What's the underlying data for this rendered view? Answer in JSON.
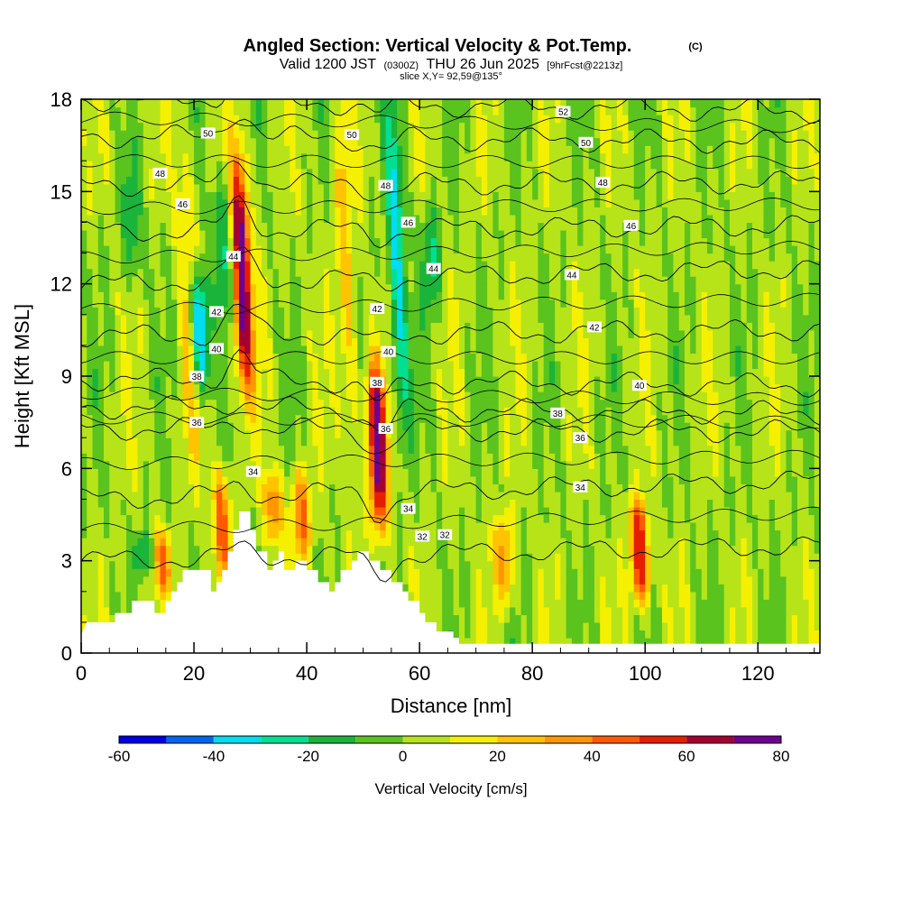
{
  "header": {
    "title": "Angled Section: Vertical Velocity & Pot.Temp.",
    "copyright": "(C)",
    "valid_prefix": "Valid 1200 JST",
    "valid_utc": "(0300Z)",
    "valid_date": "THU 26 Jun 2025",
    "forecast": "[9hrFcst@2213z]",
    "slice": "slice X,Y= 92,59@135°"
  },
  "colors": {
    "bins": [
      "#0000e6",
      "#0066f0",
      "#00dcf0",
      "#00e090",
      "#1bb43a",
      "#5ac31e",
      "#b6e419",
      "#f5f000",
      "#ffc300",
      "#ff9600",
      "#ff5a00",
      "#e61e00",
      "#a50032",
      "#6e0091"
    ],
    "terrain": "#ffffff",
    "contour": "#000000"
  },
  "chart_data": {
    "type": "heatmap",
    "xlabel": "Distance [nm]",
    "ylabel": "Height [Kft MSL]",
    "xlim": [
      0,
      131
    ],
    "ylim": [
      0,
      18
    ],
    "xticks": [
      0,
      20,
      40,
      60,
      80,
      100,
      120
    ],
    "yticks": [
      0,
      3,
      6,
      9,
      12,
      15,
      18
    ],
    "colorbar": {
      "label": "Vertical Velocity [cm/s]",
      "boundaries": [
        -60,
        -50,
        -40,
        -30,
        -20,
        -10,
        0,
        10,
        20,
        30,
        40,
        50,
        60,
        70,
        80
      ],
      "tick_labels": [
        "-60",
        "-40",
        "-20",
        "0",
        "20",
        "40",
        "60",
        "80"
      ],
      "tick_values": [
        -60,
        -40,
        -20,
        0,
        20,
        40,
        60,
        80
      ]
    },
    "field_features": {
      "updrafts": [
        {
          "x": 28.5,
          "y_bottom": 8.5,
          "y_top": 16.2,
          "max": 75
        },
        {
          "x": 52.5,
          "y_bottom": 4.0,
          "y_top": 9.5,
          "max": 75
        },
        {
          "x": 99,
          "y_bottom": 1.5,
          "y_top": 5.0,
          "max": 60
        },
        {
          "x": 25,
          "y_bottom": 2.5,
          "y_top": 6.0,
          "max": 40
        },
        {
          "x": 47,
          "y_bottom": 6.0,
          "y_top": 18,
          "max": 22
        },
        {
          "x": 19,
          "y_bottom": 6.0,
          "y_top": 17,
          "max": 20
        },
        {
          "x": 14.5,
          "y_bottom": 2.0,
          "y_top": 4.0,
          "max": 35
        },
        {
          "x": 39,
          "y_bottom": 3.0,
          "y_top": 6.0,
          "max": 40
        },
        {
          "x": 34,
          "y_bottom": 3.5,
          "y_top": 6.0,
          "max": 35
        },
        {
          "x": 75,
          "y_bottom": 1.5,
          "y_top": 4.5,
          "max": 35
        }
      ],
      "downdrafts": [
        {
          "x": 21,
          "y_bottom": 8.5,
          "y_top": 12.5,
          "min": -55
        },
        {
          "x": 25,
          "y_bottom": 11.0,
          "y_top": 15.5,
          "min": -25
        },
        {
          "x": 56,
          "y_bottom": 7.0,
          "y_top": 18,
          "min": -35
        },
        {
          "x": 62,
          "y_bottom": 11.0,
          "y_top": 14.5,
          "min": -25
        },
        {
          "x": 9,
          "y_bottom": 12.0,
          "y_top": 16,
          "min": -20
        },
        {
          "x": 11,
          "y_bottom": 2.5,
          "y_top": 4.0,
          "min": -25
        }
      ]
    },
    "terrain": {
      "x": [
        0,
        1,
        6,
        6,
        9,
        9,
        13,
        13,
        15,
        15,
        16,
        16,
        17,
        17,
        18,
        18,
        23,
        23,
        24,
        24,
        25,
        25,
        26,
        26,
        27,
        27,
        28,
        28,
        29,
        29,
        30,
        30,
        31,
        31,
        33,
        33,
        34,
        34,
        35,
        35,
        36,
        36,
        38,
        38,
        40,
        40,
        42,
        42,
        44,
        44,
        45,
        45,
        46,
        46,
        48,
        48,
        49,
        49,
        51,
        51,
        53,
        53,
        55,
        55,
        57,
        57,
        58,
        58,
        60,
        60,
        61,
        61,
        63,
        63,
        66,
        66,
        67,
        67,
        69,
        69,
        72,
        72,
        73
      ],
      "y": [
        0.6,
        1.0,
        1.0,
        1.3,
        1.3,
        1.7,
        1.7,
        1.3,
        1.3,
        1.7,
        1.7,
        2.0,
        2.0,
        2.3,
        2.3,
        2.7,
        2.7,
        2.0,
        2.0,
        2.3,
        2.3,
        2.7,
        2.7,
        3.3,
        3.3,
        4.0,
        4.0,
        4.6,
        4.6,
        4.6,
        4.6,
        4.0,
        4.0,
        3.3,
        3.3,
        2.7,
        2.7,
        3.0,
        3.0,
        3.3,
        3.3,
        2.7,
        2.7,
        3.0,
        3.0,
        2.7,
        2.7,
        2.3,
        2.3,
        2.0,
        2.0,
        2.3,
        2.3,
        2.7,
        2.7,
        3.0,
        3.0,
        3.3,
        3.3,
        3.0,
        3.0,
        2.7,
        2.7,
        2.3,
        2.3,
        2.0,
        2.0,
        1.7,
        1.7,
        1.3,
        1.3,
        1.0,
        1.0,
        0.7,
        0.7,
        0.5,
        0.5,
        0.3,
        0.3,
        0.3,
        0.3,
        0.3,
        0.3
      ]
    },
    "theta_contours": [
      {
        "theta": 32,
        "label": "32",
        "y_left": 3.0,
        "y_right": 3.5,
        "label_x": 64.5,
        "label_y": 3.85
      },
      {
        "theta": 34,
        "label": "34",
        "y_left": 5.0,
        "y_right": 5.6,
        "label_x": 88.5,
        "label_y": 5.4
      },
      {
        "theta": 36,
        "label": "36",
        "y_left": 7.3,
        "y_right": 7.2,
        "label_x": 88.5,
        "label_y": 7.0
      },
      {
        "theta": 38,
        "label": "38",
        "y_left": 8.0,
        "y_right": 7.8,
        "label_x": 84.5,
        "label_y": 7.8
      },
      {
        "theta": 40,
        "label": "40",
        "y_left": 8.9,
        "y_right": 8.7,
        "label_x": 99,
        "label_y": 8.7
      },
      {
        "theta": 42,
        "label": "42",
        "y_left": 10.3,
        "y_right": 10.5,
        "label_x": 91,
        "label_y": 10.6
      },
      {
        "theta": 44,
        "label": "44",
        "y_left": 12.0,
        "y_right": 12.5,
        "label_x": 87,
        "label_y": 12.3
      },
      {
        "theta": 46,
        "label": "46",
        "y_left": 13.7,
        "y_right": 13.9,
        "label_x": 97.5,
        "label_y": 13.9
      },
      {
        "theta": 48,
        "label": "48",
        "y_left": 15.2,
        "y_right": 15.3,
        "label_x": 92.5,
        "label_y": 15.3
      },
      {
        "theta": 50,
        "label": "50",
        "y_left": 16.8,
        "y_right": 16.6,
        "label_x": 89.5,
        "label_y": 16.6
      },
      {
        "theta": 52,
        "label": "52",
        "y_left": 18.0,
        "y_right": 17.6,
        "label_x": 85.5,
        "label_y": 17.6
      }
    ],
    "contour_label_extras": [
      {
        "label": "50",
        "x": 22.5,
        "y": 16.9
      },
      {
        "label": "50",
        "x": 48,
        "y": 16.85
      },
      {
        "label": "48",
        "x": 14,
        "y": 15.6
      },
      {
        "label": "48",
        "x": 54,
        "y": 15.2
      },
      {
        "label": "46",
        "x": 18,
        "y": 14.6
      },
      {
        "label": "46",
        "x": 58,
        "y": 14.0
      },
      {
        "label": "44",
        "x": 27,
        "y": 12.9
      },
      {
        "label": "44",
        "x": 62.5,
        "y": 12.5
      },
      {
        "label": "42",
        "x": 24,
        "y": 11.1
      },
      {
        "label": "42",
        "x": 52.5,
        "y": 11.2
      },
      {
        "label": "40",
        "x": 24,
        "y": 9.9
      },
      {
        "label": "40",
        "x": 54.5,
        "y": 9.8
      },
      {
        "label": "38",
        "x": 20.5,
        "y": 9.0
      },
      {
        "label": "38",
        "x": 52.5,
        "y": 8.8
      },
      {
        "label": "36",
        "x": 20.5,
        "y": 7.5
      },
      {
        "label": "36",
        "x": 54,
        "y": 7.3
      },
      {
        "label": "34",
        "x": 30.5,
        "y": 5.9
      },
      {
        "label": "34",
        "x": 58,
        "y": 4.7
      },
      {
        "label": "32",
        "x": 60.5,
        "y": 3.8
      }
    ]
  }
}
